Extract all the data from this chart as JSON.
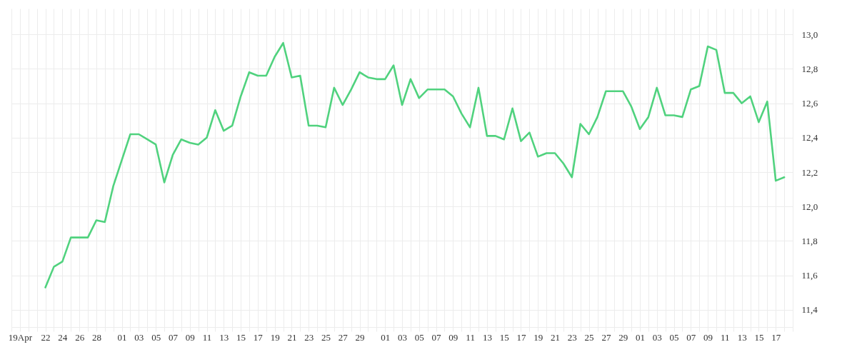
{
  "chart_data": {
    "type": "line",
    "x": [
      "--04-22",
      "--04-23",
      "--04-24",
      "--04-25",
      "--04-26",
      "--04-27",
      "--04-28",
      "--04-29",
      "--04-30",
      "--05-01",
      "--05-02",
      "--05-03",
      "--05-04",
      "--05-05",
      "--05-06",
      "--05-07",
      "--05-08",
      "--05-09",
      "--05-10",
      "--05-11",
      "--05-12",
      "--05-13",
      "--05-14",
      "--05-15",
      "--05-16",
      "--05-17",
      "--05-18",
      "--05-19",
      "--05-20",
      "--05-21",
      "--05-22",
      "--05-23",
      "--05-24",
      "--05-25",
      "--05-26",
      "--05-27",
      "--05-28",
      "--05-29",
      "--05-30",
      "--05-31",
      "--06-01",
      "--06-02",
      "--06-03",
      "--06-04",
      "--06-05",
      "--06-06",
      "--06-07",
      "--06-08",
      "--06-09",
      "--06-10",
      "--06-11",
      "--06-12",
      "--06-13",
      "--06-14",
      "--06-15",
      "--06-16",
      "--06-17",
      "--06-18",
      "--06-19",
      "--06-20",
      "--06-21",
      "--06-22",
      "--06-23",
      "--06-24",
      "--06-25",
      "--06-26",
      "--06-27",
      "--06-28",
      "--06-29",
      "--06-30",
      "--07-01",
      "--07-02",
      "--07-03",
      "--07-04",
      "--07-05",
      "--07-06",
      "--07-07",
      "--07-08",
      "--07-09",
      "--07-10",
      "--07-11",
      "--07-12",
      "--07-13",
      "--07-14",
      "--07-15",
      "--07-16",
      "--07-17",
      "--07-18"
    ],
    "series": [
      {
        "color": "#50d27e",
        "values": [
          11.53,
          11.65,
          11.68,
          11.82,
          11.82,
          11.82,
          11.92,
          11.91,
          12.12,
          12.27,
          12.42,
          12.42,
          12.39,
          12.36,
          12.14,
          12.3,
          12.39,
          12.37,
          12.36,
          12.4,
          12.56,
          12.44,
          12.47,
          12.64,
          12.78,
          12.76,
          12.76,
          12.87,
          12.95,
          12.75,
          12.76,
          12.47,
          12.47,
          12.46,
          12.69,
          12.59,
          12.68,
          12.78,
          12.75,
          12.74,
          12.74,
          12.82,
          12.59,
          12.74,
          12.63,
          12.68,
          12.68,
          12.68,
          12.64,
          12.54,
          12.46,
          12.69,
          12.41,
          12.41,
          12.39,
          12.57,
          12.38,
          12.43,
          12.29,
          12.31,
          12.31,
          12.25,
          12.17,
          12.48,
          12.42,
          12.52,
          12.67,
          12.67,
          12.67,
          12.58,
          12.45,
          12.52,
          12.69,
          12.53,
          12.53,
          12.52,
          12.68,
          12.7,
          12.93,
          12.91,
          12.66,
          12.66,
          12.6,
          12.64,
          12.49,
          12.61,
          12.15,
          12.17
        ]
      }
    ],
    "xlim": [
      "--04-18",
      "--07-19"
    ],
    "xticks": [
      {
        "value": "--04-18",
        "label": null
      },
      {
        "value": "--04-19",
        "label": "19Apr"
      },
      {
        "value": "--04-20",
        "label": null
      },
      {
        "value": "--04-21",
        "label": null
      },
      {
        "value": "--04-22",
        "label": "22"
      },
      {
        "value": "--04-23",
        "label": null
      },
      {
        "value": "--04-24",
        "label": "24"
      },
      {
        "value": "--04-25",
        "label": null
      },
      {
        "value": "--04-26",
        "label": "26"
      },
      {
        "value": "--04-27",
        "label": null
      },
      {
        "value": "--04-28",
        "label": "28"
      },
      {
        "value": "--04-29",
        "label": null
      },
      {
        "value": "--04-30",
        "label": null
      },
      {
        "value": "--05-01",
        "label": "01"
      },
      {
        "value": "--05-02",
        "label": null
      },
      {
        "value": "--05-03",
        "label": "03"
      },
      {
        "value": "--05-04",
        "label": null
      },
      {
        "value": "--05-05",
        "label": "05"
      },
      {
        "value": "--05-06",
        "label": null
      },
      {
        "value": "--05-07",
        "label": "07"
      },
      {
        "value": "--05-08",
        "label": null
      },
      {
        "value": "--05-09",
        "label": "09"
      },
      {
        "value": "--05-10",
        "label": null
      },
      {
        "value": "--05-11",
        "label": "11"
      },
      {
        "value": "--05-12",
        "label": null
      },
      {
        "value": "--05-13",
        "label": "13"
      },
      {
        "value": "--05-14",
        "label": null
      },
      {
        "value": "--05-15",
        "label": "15"
      },
      {
        "value": "--05-16",
        "label": null
      },
      {
        "value": "--05-17",
        "label": "17"
      },
      {
        "value": "--05-18",
        "label": null
      },
      {
        "value": "--05-19",
        "label": "19"
      },
      {
        "value": "--05-20",
        "label": null
      },
      {
        "value": "--05-21",
        "label": "21"
      },
      {
        "value": "--05-22",
        "label": null
      },
      {
        "value": "--05-23",
        "label": "23"
      },
      {
        "value": "--05-24",
        "label": null
      },
      {
        "value": "--05-25",
        "label": "25"
      },
      {
        "value": "--05-26",
        "label": null
      },
      {
        "value": "--05-27",
        "label": "27"
      },
      {
        "value": "--05-28",
        "label": null
      },
      {
        "value": "--05-29",
        "label": "29"
      },
      {
        "value": "--05-30",
        "label": null
      },
      {
        "value": "--05-31",
        "label": null
      },
      {
        "value": "--06-01",
        "label": "01"
      },
      {
        "value": "--06-02",
        "label": null
      },
      {
        "value": "--06-03",
        "label": "03"
      },
      {
        "value": "--06-04",
        "label": null
      },
      {
        "value": "--06-05",
        "label": "05"
      },
      {
        "value": "--06-06",
        "label": null
      },
      {
        "value": "--06-07",
        "label": "07"
      },
      {
        "value": "--06-08",
        "label": null
      },
      {
        "value": "--06-09",
        "label": "09"
      },
      {
        "value": "--06-10",
        "label": null
      },
      {
        "value": "--06-11",
        "label": "11"
      },
      {
        "value": "--06-12",
        "label": null
      },
      {
        "value": "--06-13",
        "label": "13"
      },
      {
        "value": "--06-14",
        "label": null
      },
      {
        "value": "--06-15",
        "label": "15"
      },
      {
        "value": "--06-16",
        "label": null
      },
      {
        "value": "--06-17",
        "label": "17"
      },
      {
        "value": "--06-18",
        "label": null
      },
      {
        "value": "--06-19",
        "label": "19"
      },
      {
        "value": "--06-20",
        "label": null
      },
      {
        "value": "--06-21",
        "label": "21"
      },
      {
        "value": "--06-22",
        "label": null
      },
      {
        "value": "--06-23",
        "label": "23"
      },
      {
        "value": "--06-24",
        "label": null
      },
      {
        "value": "--06-25",
        "label": "25"
      },
      {
        "value": "--06-26",
        "label": null
      },
      {
        "value": "--06-27",
        "label": "27"
      },
      {
        "value": "--06-28",
        "label": null
      },
      {
        "value": "--06-29",
        "label": "29"
      },
      {
        "value": "--06-30",
        "label": null
      },
      {
        "value": "--07-01",
        "label": "01"
      },
      {
        "value": "--07-02",
        "label": null
      },
      {
        "value": "--07-03",
        "label": "03"
      },
      {
        "value": "--07-04",
        "label": null
      },
      {
        "value": "--07-05",
        "label": "05"
      },
      {
        "value": "--07-06",
        "label": null
      },
      {
        "value": "--07-07",
        "label": "07"
      },
      {
        "value": "--07-08",
        "label": null
      },
      {
        "value": "--07-09",
        "label": "09"
      },
      {
        "value": "--07-10",
        "label": null
      },
      {
        "value": "--07-11",
        "label": "11"
      },
      {
        "value": "--07-12",
        "label": null
      },
      {
        "value": "--07-13",
        "label": "13"
      },
      {
        "value": "--07-14",
        "label": null
      },
      {
        "value": "--07-15",
        "label": "15"
      },
      {
        "value": "--07-16",
        "label": null
      },
      {
        "value": "--07-17",
        "label": "17"
      },
      {
        "value": "--07-18",
        "label": null
      },
      {
        "value": "--07-19",
        "label": null
      }
    ],
    "ylim": [
      11.3,
      13.15
    ],
    "yticks": [
      {
        "value": 11.4,
        "label": "11,4"
      },
      {
        "value": 11.6,
        "label": "11,6"
      },
      {
        "value": 11.8,
        "label": "11,8"
      },
      {
        "value": 12.0,
        "label": "12,0"
      },
      {
        "value": 12.2,
        "label": "12,2"
      },
      {
        "value": 12.4,
        "label": "12,4"
      },
      {
        "value": 12.6,
        "label": "12,6"
      },
      {
        "value": 12.8,
        "label": "12,8"
      },
      {
        "value": 13.0,
        "label": "13,0"
      }
    ],
    "grid": true
  }
}
